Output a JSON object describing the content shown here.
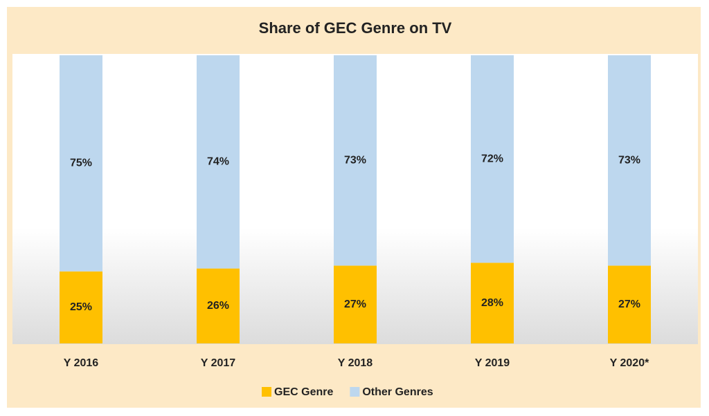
{
  "chart_data": {
    "type": "stacked-bar",
    "title": "Share of GEC Genre on TV",
    "categories": [
      "Y 2016",
      "Y 2017",
      "Y 2018",
      "Y 2019",
      "Y 2020*"
    ],
    "series": [
      {
        "name": "GEC Genre",
        "color": "#ffc000",
        "values": [
          25,
          26,
          27,
          28,
          27
        ],
        "value_labels": [
          "25%",
          "26%",
          "27%",
          "28%",
          "27%"
        ]
      },
      {
        "name": "Other Genres",
        "color": "#bdd7ee",
        "values": [
          75,
          74,
          73,
          72,
          73
        ],
        "value_labels": [
          "75%",
          "74%",
          "73%",
          "72%",
          "73%"
        ]
      }
    ],
    "ylim": [
      0,
      100
    ],
    "legend": "bottom"
  }
}
